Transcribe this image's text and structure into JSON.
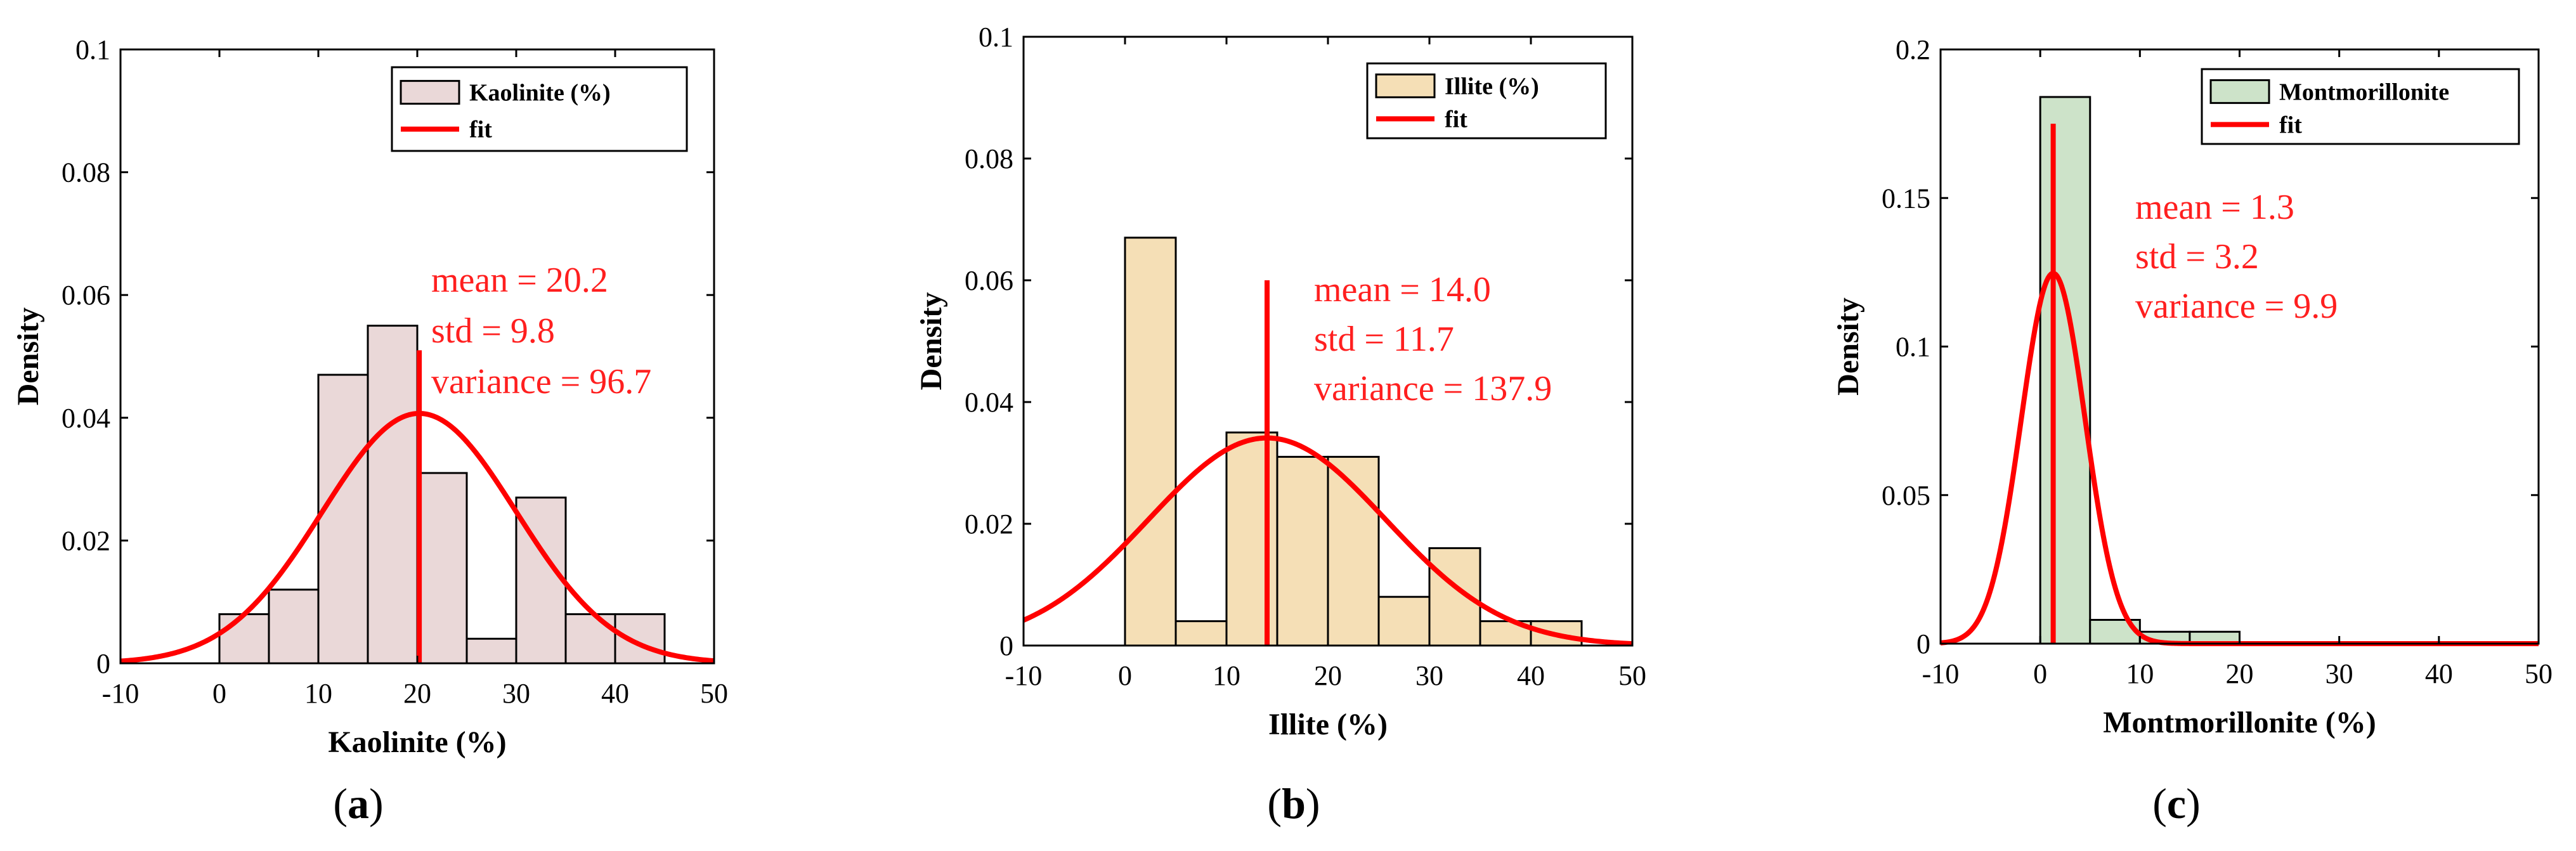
{
  "chart_data": [
    {
      "type": "bar",
      "panel": "a",
      "caption": {
        "open": "(",
        "letter": "a",
        "close": ")"
      },
      "xlabel": "Kaolinite (%)",
      "ylabel": "Density",
      "xlim": [
        -10,
        50
      ],
      "ylim": [
        0,
        0.1
      ],
      "xticks": [
        -10,
        0,
        10,
        20,
        30,
        40,
        50
      ],
      "yticks": [
        0,
        0.02,
        0.04,
        0.06,
        0.08,
        0.1
      ],
      "bin_edges": [
        0,
        5,
        10,
        15,
        20,
        25,
        30,
        35,
        40,
        45
      ],
      "values": [
        0.008,
        0.012,
        0.047,
        0.055,
        0.031,
        0.004,
        0.027,
        0.008,
        0.008
      ],
      "fit": {
        "mean": 20.2,
        "std": 9.8
      },
      "mean_line_top": 0.051,
      "bar_color": "#ead8d8",
      "legend": [
        "Kaolinite (%)",
        "fit"
      ],
      "annotations": [
        "mean = 20.2",
        "std = 9.8",
        "variance = 96.7"
      ],
      "legend_position": "top-right"
    },
    {
      "type": "bar",
      "panel": "b",
      "caption": {
        "open": "(",
        "letter": "b",
        "close": ")"
      },
      "xlabel": "Illite (%)",
      "ylabel": "Density",
      "xlim": [
        -10,
        50
      ],
      "ylim": [
        0,
        0.1
      ],
      "xticks": [
        -10,
        0,
        10,
        20,
        30,
        40,
        50
      ],
      "yticks": [
        0,
        0.02,
        0.04,
        0.06,
        0.08,
        0.1
      ],
      "bin_edges": [
        0,
        5,
        10,
        15,
        20,
        25,
        30,
        35,
        40,
        45
      ],
      "values": [
        0.067,
        0.004,
        0.035,
        0.031,
        0.031,
        0.008,
        0.016,
        0.004,
        0.004
      ],
      "fit": {
        "mean": 14.0,
        "std": 11.7
      },
      "mean_line_top": 0.06,
      "bar_color": "#f5dfb6",
      "legend": [
        "Illite (%)",
        "fit"
      ],
      "annotations": [
        "mean = 14.0",
        "std = 11.7",
        "variance = 137.9"
      ],
      "legend_position": "top-right"
    },
    {
      "type": "bar",
      "panel": "c",
      "caption": {
        "open": "(",
        "letter": "c",
        "close": ")"
      },
      "xlabel": "Montmorillonite (%)",
      "ylabel": "Density",
      "xlim": [
        -10,
        50
      ],
      "ylim": [
        0,
        0.2
      ],
      "xticks": [
        -10,
        0,
        10,
        20,
        30,
        40,
        50
      ],
      "yticks": [
        0,
        0.05,
        0.1,
        0.15,
        0.2
      ],
      "bin_edges": [
        0,
        5,
        10,
        15,
        20
      ],
      "values": [
        0.184,
        0.008,
        0.004,
        0.004
      ],
      "fit": {
        "mean": 1.3,
        "std": 3.2
      },
      "mean_line_top": 0.175,
      "bar_color": "#cde3c9",
      "legend": [
        "Montmorillonite",
        "fit"
      ],
      "annotations": [
        "mean = 1.3",
        "std = 3.2",
        "variance = 9.9"
      ],
      "legend_position": "top-right"
    }
  ],
  "colors": {
    "fit_line": "#ff0000",
    "annotation": "#ff1f1f",
    "bar_edge": "#000000"
  }
}
